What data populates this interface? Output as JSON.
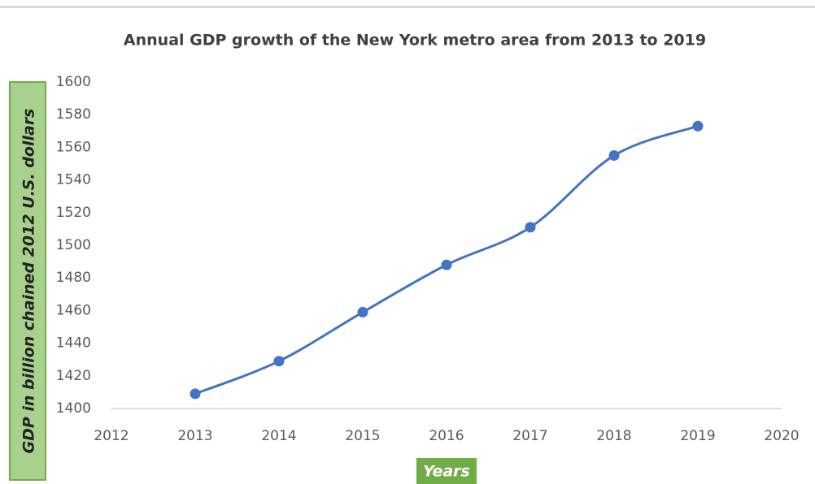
{
  "chart_data": {
    "type": "line",
    "title": "Annual GDP growth of the New York metro area from 2013 to 2019",
    "x_label": "Years",
    "y_label": "GDP in billion chained 2012 U.S. dollars",
    "x": [
      2013,
      2014,
      2015,
      2016,
      2017,
      2018,
      2019
    ],
    "values": [
      1409,
      1429,
      1459,
      1488,
      1511,
      1555,
      1573
    ],
    "color": "#4472c4",
    "smooth": true,
    "xlim": [
      2012,
      2020
    ],
    "xticks": [
      2012,
      2013,
      2014,
      2015,
      2016,
      2017,
      2018,
      2019,
      2020
    ],
    "ylim": [
      1400,
      1600
    ],
    "yticks": [
      1400,
      1420,
      1440,
      1460,
      1480,
      1500,
      1520,
      1540,
      1560,
      1580,
      1600
    ],
    "grid": false
  }
}
